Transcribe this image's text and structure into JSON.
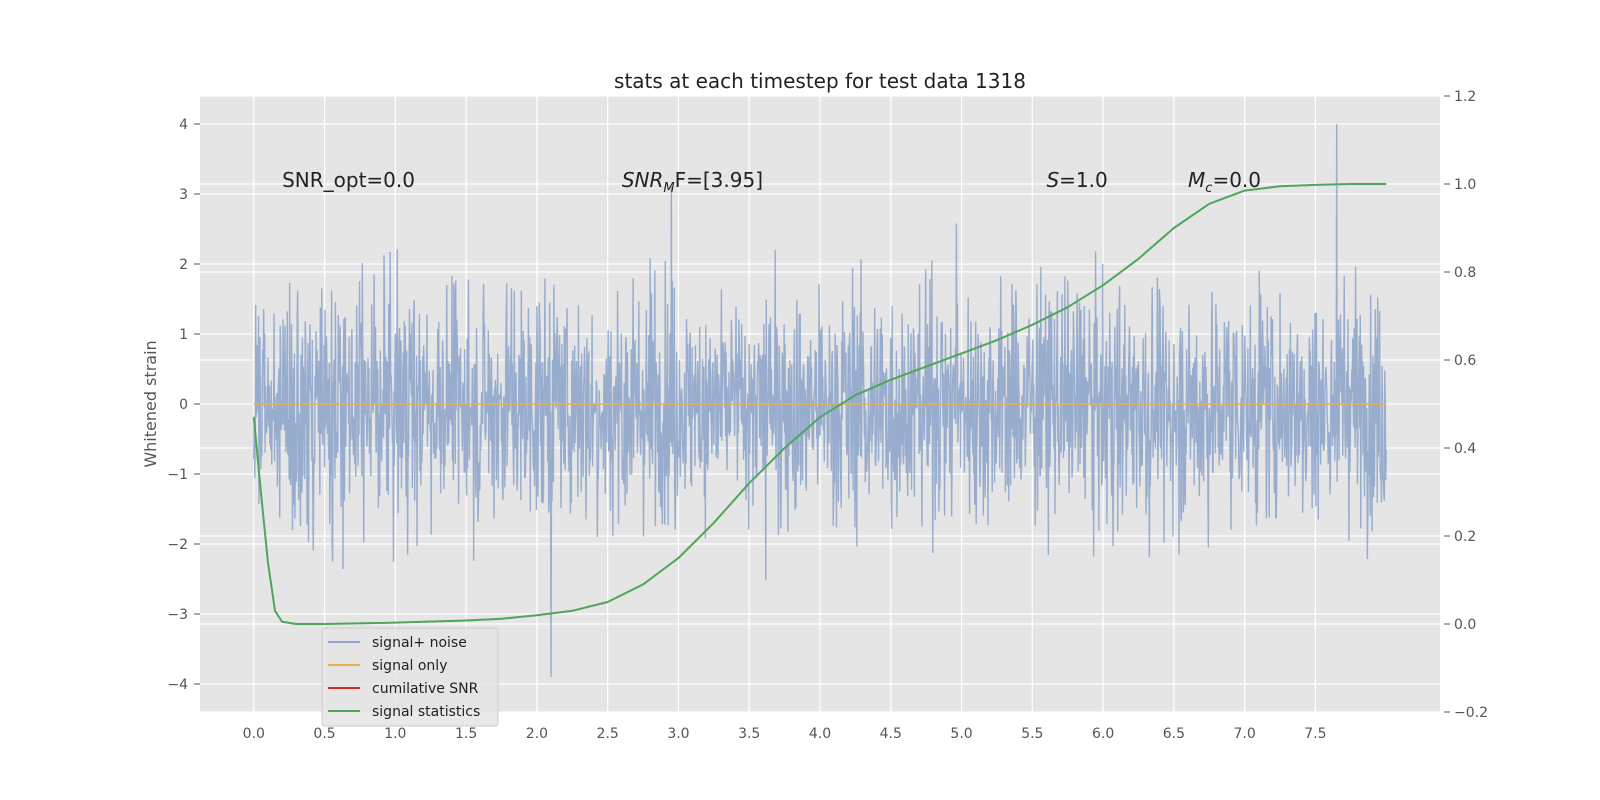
{
  "chart_data": {
    "type": "line",
    "title": "stats at each timestep for test data 1318",
    "ylabel": "Whitened strain",
    "xlabel": "",
    "xlim": [
      -0.38,
      8.38
    ],
    "ylim": [
      -4.4,
      4.4
    ],
    "y2lim": [
      -0.2,
      1.2
    ],
    "grid": true,
    "legend_position": "lower-left",
    "xticks": [
      "0.0",
      "0.5",
      "1.0",
      "1.5",
      "2.0",
      "2.5",
      "3.0",
      "3.5",
      "4.0",
      "4.5",
      "5.0",
      "5.5",
      "6.0",
      "6.5",
      "7.0",
      "7.5"
    ],
    "yticks": [
      "−4",
      "−3",
      "−2",
      "−1",
      "0",
      "1",
      "2",
      "3",
      "4"
    ],
    "y2ticks": [
      "−0.2",
      "0.0",
      "0.2",
      "0.4",
      "0.6",
      "0.8",
      "1.0",
      "1.2"
    ],
    "annotations": [
      {
        "x": 0.2,
        "y": 3.2,
        "text": "SNR_opt=0.0",
        "math": false
      },
      {
        "x": 2.6,
        "y": 3.2,
        "pre": "SNR",
        "sub": "M",
        "post": "F=[3.95]",
        "math": true
      },
      {
        "x": 5.6,
        "y": 3.2,
        "pre": "S",
        "sub": "",
        "post": "=1.0",
        "math": true
      },
      {
        "x": 6.6,
        "y": 3.2,
        "pre": "M",
        "sub": "c",
        "post": "=0.0",
        "math": true
      }
    ],
    "series": [
      {
        "name": "signal+ noise",
        "color": "#8fa6cb",
        "axis": "left",
        "x_range": [
          0.0,
          8.0
        ],
        "spread": "random noise, typical amplitude ±1.8, peaks near +4.0 at x≈7.65 and −3.9 at x≈2.1",
        "y_min": -3.9,
        "y_max": 4.0
      },
      {
        "name": "signal only",
        "color": "#e8b04b",
        "axis": "left",
        "x": [
          0.0,
          8.0
        ],
        "y": [
          0.0,
          0.0
        ]
      },
      {
        "name": "cumilative SNR",
        "color": "#d62a1e",
        "axis": "left",
        "x": [],
        "y": []
      },
      {
        "name": "signal statistics",
        "color": "#4ea55b",
        "axis": "right",
        "x": [
          0.0,
          0.05,
          0.1,
          0.15,
          0.2,
          0.3,
          0.5,
          1.0,
          1.5,
          1.75,
          2.0,
          2.25,
          2.5,
          2.75,
          3.0,
          3.25,
          3.5,
          3.75,
          4.0,
          4.25,
          4.5,
          4.75,
          5.0,
          5.25,
          5.5,
          5.75,
          6.0,
          6.25,
          6.5,
          6.75,
          7.0,
          7.25,
          7.5,
          7.75,
          8.0
        ],
        "y": [
          0.47,
          0.3,
          0.14,
          0.03,
          0.005,
          0.0,
          0.0,
          0.003,
          0.008,
          0.012,
          0.02,
          0.03,
          0.05,
          0.09,
          0.15,
          0.23,
          0.32,
          0.4,
          0.47,
          0.52,
          0.555,
          0.585,
          0.615,
          0.645,
          0.68,
          0.72,
          0.77,
          0.83,
          0.9,
          0.955,
          0.985,
          0.995,
          0.998,
          1.0,
          1.0
        ]
      }
    ]
  }
}
